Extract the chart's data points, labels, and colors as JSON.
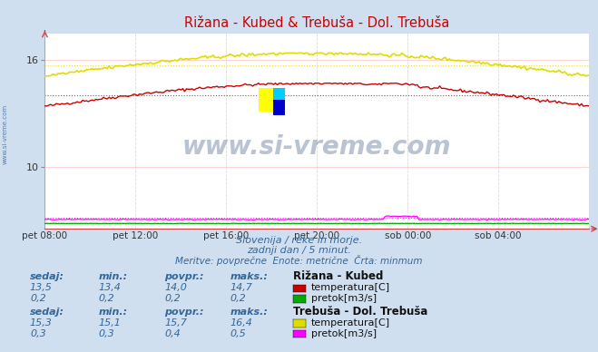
{
  "title": "Rižana - Kubed & Trebuša - Dol. Trebuša",
  "title_color": "#cc0000",
  "bg_color": "#d0dff0",
  "plot_bg_color": "#ffffff",
  "grid_color_h": "#ffcccc",
  "grid_color_v": "#ffcccc",
  "xlim": [
    0,
    288
  ],
  "ylim": [
    6.5,
    17.5
  ],
  "yticks": [
    10,
    16
  ],
  "xtick_positions": [
    0,
    48,
    96,
    144,
    192,
    240
  ],
  "xtick_labels": [
    "pet 08:00",
    "pet 12:00",
    "pet 16:00",
    "pet 20:00",
    "sob 00:00",
    "sob 04:00"
  ],
  "rizana_temp_color": "#cc0000",
  "rizana_flow_color": "#00aa00",
  "trebusa_temp_color": "#dddd00",
  "trebusa_flow_color": "#ff00ff",
  "rizana_temp_min": 13.4,
  "rizana_temp_max": 14.7,
  "rizana_temp_avg": 14.0,
  "rizana_temp_now": 13.5,
  "rizana_flow_avg": 0.2,
  "trebusa_temp_min": 15.1,
  "trebusa_temp_max": 16.4,
  "trebusa_temp_avg": 15.7,
  "trebusa_temp_now": 15.3,
  "trebusa_flow_avg": 0.4,
  "watermark": "www.si-vreme.com",
  "watermark_color": "#1a3a6a",
  "subtitle1": "Slovenija / reke in morje.",
  "subtitle2": "zadnji dan / 5 minut.",
  "subtitle3": "Meritve: povprečne  Enote: metrične  Črta: minmum",
  "subtitle_color": "#336699",
  "label_color": "#336699",
  "value_color": "#336699",
  "station1_name": "Rižana - Kubed",
  "station2_name": "Trebuša - Dol. Trebuša",
  "s1_sedaj": "13,5",
  "s1_min": "13,4",
  "s1_povpr": "14,0",
  "s1_maks": "14,7",
  "s1_flow_sedaj": "0,2",
  "s1_flow_min": "0,2",
  "s1_flow_povpr": "0,2",
  "s1_flow_maks": "0,2",
  "s2_sedaj": "15,3",
  "s2_min": "15,1",
  "s2_povpr": "15,7",
  "s2_maks": "16,4",
  "s2_flow_sedaj": "0,3",
  "s2_flow_min": "0,3",
  "s2_flow_povpr": "0,4",
  "s2_flow_maks": "0,5",
  "temp_label": "temperatura[C]",
  "flow_label": "pretok[m3/s]"
}
